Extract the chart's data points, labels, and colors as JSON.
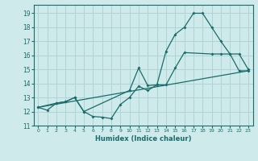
{
  "xlabel": "Humidex (Indice chaleur)",
  "bg_color": "#ceeaea",
  "grid_color": "#aed4d4",
  "line_color": "#1a6b6b",
  "xlim": [
    -0.5,
    23.5
  ],
  "ylim": [
    11.0,
    19.6
  ],
  "xticks": [
    0,
    1,
    2,
    3,
    4,
    5,
    6,
    7,
    8,
    9,
    10,
    11,
    12,
    13,
    14,
    15,
    16,
    17,
    18,
    19,
    20,
    21,
    22,
    23
  ],
  "yticks": [
    11,
    12,
    13,
    14,
    15,
    16,
    17,
    18,
    19
  ],
  "curve1_x": [
    0,
    1,
    2,
    3,
    4,
    5,
    6,
    7,
    8,
    9,
    10,
    11,
    12,
    13,
    14,
    15,
    16,
    17,
    18,
    19,
    20,
    21,
    22,
    23
  ],
  "curve1_y": [
    12.3,
    12.1,
    12.6,
    12.7,
    13.0,
    12.0,
    11.65,
    11.6,
    11.5,
    12.5,
    13.0,
    13.8,
    13.5,
    13.9,
    16.3,
    17.5,
    18.0,
    19.0,
    19.0,
    18.0,
    17.0,
    16.1,
    16.1,
    15.0
  ],
  "curve2_x": [
    0,
    2,
    3,
    4,
    5,
    10,
    11,
    12,
    13,
    14,
    15,
    16,
    19,
    20,
    21,
    22,
    23
  ],
  "curve2_y": [
    12.3,
    12.6,
    12.7,
    13.0,
    12.0,
    13.5,
    15.1,
    13.85,
    13.9,
    13.9,
    15.1,
    16.2,
    16.1,
    16.1,
    16.1,
    14.9,
    14.9
  ],
  "curve3_x": [
    0,
    23
  ],
  "curve3_y": [
    12.3,
    14.9
  ]
}
